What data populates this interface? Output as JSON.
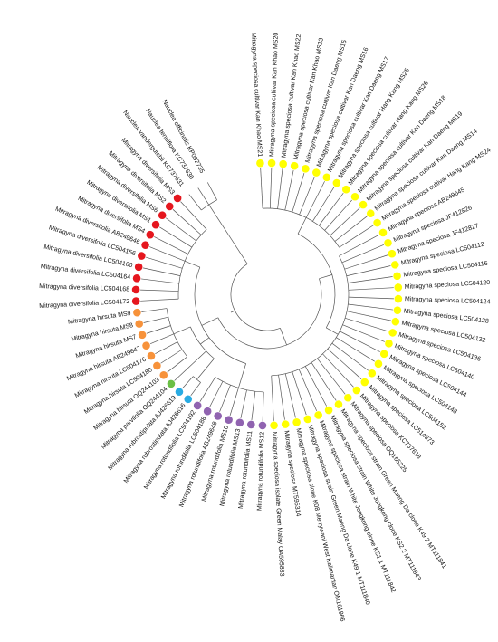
{
  "leaves": [
    {
      "label": "Mitragyna speciosa cultivar Kan Khao MS21",
      "color": "#ffff00"
    },
    {
      "label": "Mitragyna speciosa cultivar Kan Khao MS20",
      "color": "#ffff00"
    },
    {
      "label": "Mitragyna speciosa cultivar Kan Khao MS22",
      "color": "#ffff00"
    },
    {
      "label": "Mitragyna speciosa cultivar Kan Khao MS23",
      "color": "#ffff00"
    },
    {
      "label": "Mitragyna speciosa cultivar Kan Daeng MS15",
      "color": "#ffff00"
    },
    {
      "label": "Mitragyna speciosa cultivar Kan Daeng MS16",
      "color": "#ffff00"
    },
    {
      "label": "Mitragyna speciosa cultivar Kan Daeng MS17",
      "color": "#ffff00"
    },
    {
      "label": "Mitragyna speciosa cultivar Hang Kang MS25",
      "color": "#ffff00"
    },
    {
      "label": "Mitragyna speciosa cultivar Hang Kang MS26",
      "color": "#ffff00"
    },
    {
      "label": "Mitragyna speciosa cultivar Kan Daeng MS18",
      "color": "#ffff00"
    },
    {
      "label": "Mitragyna speciosa cultivar Kan Daeng MS19",
      "color": "#ffff00"
    },
    {
      "label": "Mitragyna speciosa cultivar Kan Daeng MS14",
      "color": "#ffff00"
    },
    {
      "label": "Mitragyna speciosa cultivar Hang Kang MS24",
      "color": "#ffff00"
    },
    {
      "label": "Mitragyna speciosa AB249645",
      "color": "#ffff00"
    },
    {
      "label": "Mitragyna speciosa JF412826",
      "color": "#ffff00"
    },
    {
      "label": "Mitragyna speciosa JF412827",
      "color": "#ffff00"
    },
    {
      "label": "Mitragyna speciosa LC504112",
      "color": "#ffff00"
    },
    {
      "label": "Mitragyna speciosa LC504116",
      "color": "#ffff00"
    },
    {
      "label": "Mitragyna speciosa LC504120",
      "color": "#ffff00"
    },
    {
      "label": "Mitragyna speciosa LC504124",
      "color": "#ffff00"
    },
    {
      "label": "Mitragyna speciosa LC504128",
      "color": "#ffff00"
    },
    {
      "label": "Mitragyna speciosa LC504132",
      "color": "#ffff00"
    },
    {
      "label": "Mitragyna speciosa LC504136",
      "color": "#ffff00"
    },
    {
      "label": "Mitragyna speciosa LC504140",
      "color": "#ffff00"
    },
    {
      "label": "Mitragyna speciosa LC504144",
      "color": "#ffff00"
    },
    {
      "label": "Mitragyna speciosa LC504148",
      "color": "#ffff00"
    },
    {
      "label": "Mitragyna speciosa LC504152",
      "color": "#ffff00"
    },
    {
      "label": "Mitragyna speciosa LC514373",
      "color": "#ffff00"
    },
    {
      "label": "Mitragyna speciosa KC737618",
      "color": "#ffff00"
    },
    {
      "label": "Mitragyna speciosa OQ165225",
      "color": "#ffff00"
    },
    {
      "label": "Mitragyna speciosa strain Green Maeng Da clone K49 2 MT111841",
      "color": "#ffff00"
    },
    {
      "label": "Mitragyna speciosa strain White Jongkong clone KS2 2 MT111843",
      "color": "#ffff00"
    },
    {
      "label": "Mitragyna speciosa strain White Jongkong clone KS1 1 MT111842",
      "color": "#ffff00"
    },
    {
      "label": "Mitragyna speciosa strain Green Maeng Da clone K49 1 MT111840",
      "color": "#ffff00"
    },
    {
      "label": "Mitragyna speciosa clone K08 Merrywani West Kalimantan OM161966",
      "color": "#ffff00"
    },
    {
      "label": "Mitragyna speciosa MT595314",
      "color": "#ffff00"
    },
    {
      "label": "Mitragyna speciosa isolate Green Malay OA595833",
      "color": "#ffff00"
    },
    {
      "label": "Mitragyna rotundifolia MS12",
      "color": "#9063b0"
    },
    {
      "label": "Mitragyna rotundifolia MS11",
      "color": "#9063b0"
    },
    {
      "label": "Mitragyna rotundifolia MS13",
      "color": "#9063b0"
    },
    {
      "label": "Mitragyna rotundifolia MS10",
      "color": "#9063b0"
    },
    {
      "label": "Mitragyna rotundifolia AB249648",
      "color": "#9063b0"
    },
    {
      "label": "Mitragyna rotundifolia LC504188",
      "color": "#9063b0"
    },
    {
      "label": "Mitragyna rotundifolia LC504192",
      "color": "#9063b0"
    },
    {
      "label": "Mitragyna rubrostipulata AJ426616",
      "color": "#29abe2"
    },
    {
      "label": "Mitragyna rubrostipulata AJ426619",
      "color": "#29abe2"
    },
    {
      "label": "Mitragyna parvifolia OQ244104",
      "color": "#6abf45"
    },
    {
      "label": "Mitragyna hirsuta OQ244103",
      "color": "#f7923a"
    },
    {
      "label": "Mitragyna hirsuta LC504180",
      "color": "#f7923a"
    },
    {
      "label": "Mitragyna hirsuta LC504176",
      "color": "#f7923a"
    },
    {
      "label": "Mitragyna hirsuta AB249647",
      "color": "#f7923a"
    },
    {
      "label": "Mitragyna hirsuta MS7",
      "color": "#f7923a"
    },
    {
      "label": "Mitragyna hirsuta MS8",
      "color": "#f7923a"
    },
    {
      "label": "Mitragyna hirsuta MS9",
      "color": "#f7923a"
    },
    {
      "label": "Mitragyna diversifolia LC504172",
      "color": "#e5161e"
    },
    {
      "label": "Mitragyna diversifolia LC504168",
      "color": "#e5161e"
    },
    {
      "label": "Mitragyna diversifolia LC504164",
      "color": "#e5161e"
    },
    {
      "label": "Mitragyna diversifolia LC504160",
      "color": "#e5161e"
    },
    {
      "label": "Mitragyna diversifolia LC504156",
      "color": "#e5161e"
    },
    {
      "label": "Mitragyna diversifolia AB249646",
      "color": "#e5161e"
    },
    {
      "label": "Mitragyna diversifolia MS4",
      "color": "#e5161e"
    },
    {
      "label": "Mitragyna diversifolia MS1",
      "color": "#e5161e"
    },
    {
      "label": "Mitragyna diversifolia MS6",
      "color": "#e5161e"
    },
    {
      "label": "Mitragyna diversifolia MS2",
      "color": "#e5161e"
    },
    {
      "label": "Mitragyna diversifolia MS3",
      "color": "#e5161e"
    },
    {
      "label": "Nauclea vandergutchii KC737631"
    },
    {
      "label": "Nauclea tenuiflora KC737630"
    },
    {
      "label": "Nauclea officinalis KP092735"
    }
  ]
}
